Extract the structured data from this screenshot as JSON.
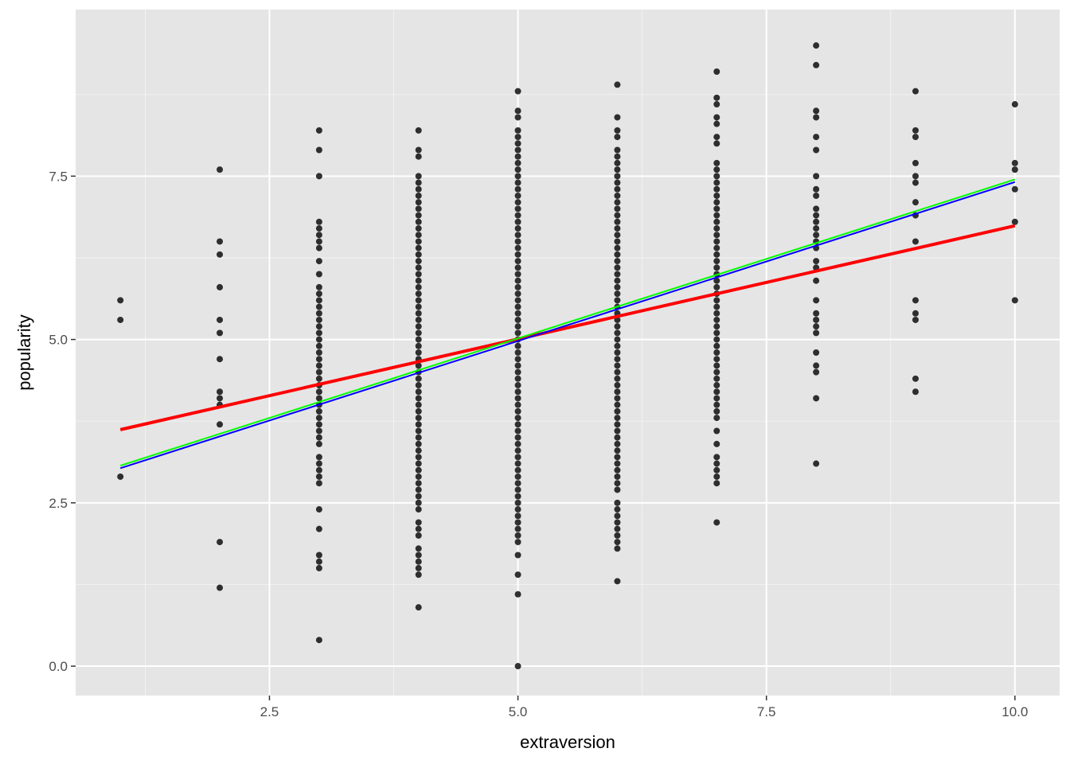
{
  "chart_data": {
    "type": "scatter",
    "xlabel": "extraversion",
    "ylabel": "popularity",
    "xlim": [
      0.55,
      10.45
    ],
    "ylim": [
      -0.45,
      10.05
    ],
    "x_ticks": [
      2.5,
      5.0,
      7.5,
      10.0
    ],
    "x_tick_labels": [
      "2.5",
      "5.0",
      "7.5",
      "10.0"
    ],
    "y_ticks": [
      0.0,
      2.5,
      5.0,
      7.5
    ],
    "y_tick_labels": [
      "0.0",
      "2.5",
      "5.0",
      "7.5"
    ],
    "grid": true,
    "background": "#e5e5e5",
    "point_color": "#000000",
    "points": [
      {
        "x": 1,
        "y": [
          5.6,
          5.3,
          2.9
        ]
      },
      {
        "x": 2,
        "y": [
          7.6,
          6.5,
          6.3,
          5.8,
          5.3,
          5.1,
          4.7,
          4.2,
          4.1,
          4.0,
          3.7,
          1.9,
          1.2
        ]
      },
      {
        "x": 3,
        "y": [
          8.2,
          7.9,
          7.5,
          6.8,
          6.7,
          6.6,
          6.5,
          6.4,
          6.2,
          6.0,
          5.8,
          5.7,
          5.6,
          5.5,
          5.4,
          5.3,
          5.2,
          5.1,
          5.0,
          4.9,
          4.8,
          4.7,
          4.6,
          4.5,
          4.4,
          4.3,
          4.2,
          4.1,
          4.0,
          3.9,
          3.8,
          3.7,
          3.6,
          3.5,
          3.4,
          3.2,
          3.1,
          3.0,
          2.9,
          2.8,
          2.4,
          2.1,
          1.7,
          1.6,
          1.5,
          0.4
        ]
      },
      {
        "x": 4,
        "y": [
          8.2,
          7.9,
          7.8,
          7.5,
          7.4,
          7.3,
          7.2,
          7.1,
          7.0,
          6.9,
          6.8,
          6.7,
          6.6,
          6.5,
          6.4,
          6.3,
          6.2,
          6.1,
          6.0,
          5.9,
          5.8,
          5.7,
          5.6,
          5.5,
          5.4,
          5.3,
          5.2,
          5.1,
          5.0,
          4.9,
          4.8,
          4.7,
          4.6,
          4.5,
          4.4,
          4.3,
          4.2,
          4.1,
          4.0,
          3.9,
          3.8,
          3.7,
          3.6,
          3.5,
          3.4,
          3.3,
          3.2,
          3.1,
          3.0,
          2.9,
          2.8,
          2.7,
          2.6,
          2.5,
          2.4,
          2.2,
          2.1,
          2.0,
          1.8,
          1.7,
          1.6,
          1.5,
          1.4,
          0.9
        ]
      },
      {
        "x": 5,
        "y": [
          8.8,
          8.5,
          8.4,
          8.2,
          8.1,
          8.0,
          7.9,
          7.8,
          7.7,
          7.6,
          7.5,
          7.4,
          7.3,
          7.2,
          7.1,
          7.0,
          6.9,
          6.8,
          6.7,
          6.6,
          6.5,
          6.4,
          6.3,
          6.2,
          6.1,
          6.0,
          5.9,
          5.8,
          5.7,
          5.6,
          5.5,
          5.4,
          5.3,
          5.2,
          5.1,
          5.0,
          4.9,
          4.8,
          4.7,
          4.6,
          4.5,
          4.4,
          4.3,
          4.2,
          4.1,
          4.0,
          3.9,
          3.8,
          3.7,
          3.6,
          3.5,
          3.4,
          3.3,
          3.2,
          3.1,
          3.0,
          2.9,
          2.8,
          2.7,
          2.6,
          2.5,
          2.4,
          2.3,
          2.2,
          2.1,
          2.0,
          1.9,
          1.7,
          1.4,
          1.1,
          0.0
        ]
      },
      {
        "x": 6,
        "y": [
          8.9,
          8.4,
          8.2,
          8.1,
          7.9,
          7.8,
          7.7,
          7.6,
          7.5,
          7.4,
          7.3,
          7.2,
          7.1,
          7.0,
          6.9,
          6.8,
          6.7,
          6.6,
          6.5,
          6.4,
          6.3,
          6.2,
          6.1,
          6.0,
          5.9,
          5.8,
          5.7,
          5.6,
          5.5,
          5.4,
          5.3,
          5.2,
          5.1,
          5.0,
          4.9,
          4.8,
          4.7,
          4.6,
          4.5,
          4.4,
          4.3,
          4.2,
          4.1,
          4.0,
          3.9,
          3.8,
          3.7,
          3.6,
          3.5,
          3.4,
          3.3,
          3.2,
          3.1,
          3.0,
          2.9,
          2.8,
          2.7,
          2.5,
          2.4,
          2.3,
          2.2,
          2.1,
          2.0,
          1.9,
          1.8,
          1.3
        ]
      },
      {
        "x": 7,
        "y": [
          9.1,
          8.7,
          8.6,
          8.4,
          8.3,
          8.1,
          8.0,
          7.7,
          7.6,
          7.5,
          7.4,
          7.3,
          7.2,
          7.1,
          7.0,
          6.9,
          6.8,
          6.7,
          6.6,
          6.5,
          6.4,
          6.3,
          6.2,
          6.1,
          6.0,
          5.9,
          5.8,
          5.7,
          5.6,
          5.5,
          5.4,
          5.3,
          5.2,
          5.1,
          5.0,
          4.9,
          4.8,
          4.7,
          4.6,
          4.5,
          4.4,
          4.3,
          4.2,
          4.1,
          4.0,
          3.9,
          3.8,
          3.6,
          3.4,
          3.2,
          3.1,
          3.0,
          2.9,
          2.8,
          2.2
        ]
      },
      {
        "x": 8,
        "y": [
          9.5,
          9.2,
          8.5,
          8.4,
          8.1,
          7.9,
          7.5,
          7.3,
          7.2,
          7.0,
          6.9,
          6.8,
          6.7,
          6.6,
          6.5,
          6.4,
          6.2,
          6.1,
          5.9,
          5.6,
          5.4,
          5.3,
          5.2,
          5.1,
          4.8,
          4.6,
          4.5,
          4.1,
          3.1
        ]
      },
      {
        "x": 9,
        "y": [
          8.8,
          8.2,
          8.1,
          7.7,
          7.5,
          7.4,
          7.1,
          6.9,
          6.5,
          5.6,
          5.4,
          5.3,
          4.4,
          4.2
        ]
      },
      {
        "x": 10,
        "y": [
          8.6,
          7.7,
          7.6,
          7.3,
          6.8,
          5.6
        ]
      }
    ],
    "lines": [
      {
        "color": "#ff0000",
        "width": 4,
        "x": [
          1,
          10
        ],
        "y": [
          3.62,
          6.74
        ]
      },
      {
        "color": "#00ff00",
        "width": 2,
        "x": [
          1,
          10
        ],
        "y": [
          3.07,
          7.45
        ]
      },
      {
        "color": "#0000ff",
        "width": 2,
        "x": [
          1,
          10
        ],
        "y": [
          3.03,
          7.41
        ]
      }
    ]
  }
}
